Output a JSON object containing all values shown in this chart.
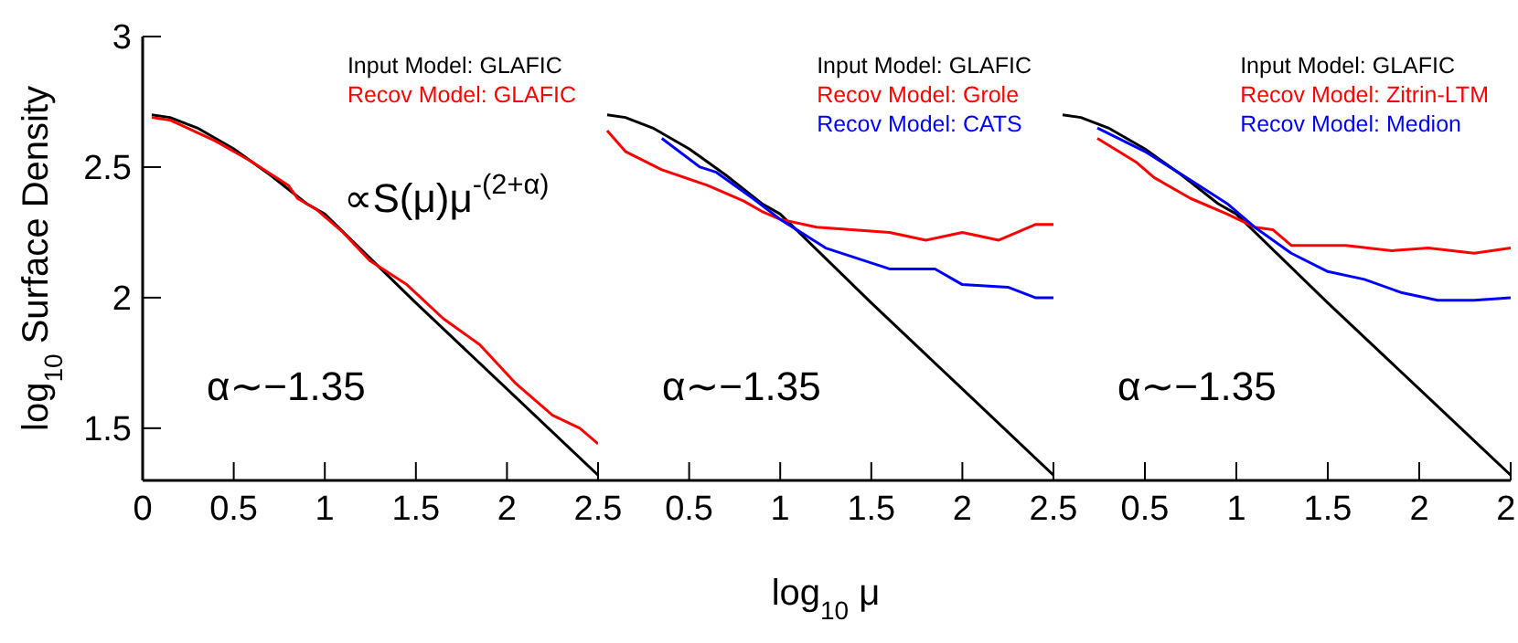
{
  "chart_data": [
    {
      "type": "line",
      "ylabel": "log$_{10}$ Surface Density",
      "xlim": [
        0,
        2.5
      ],
      "xticks": [
        0,
        0.5,
        1,
        1.5,
        2,
        2.5
      ],
      "ylim": [
        1.3,
        3
      ],
      "yticks": [
        1.5,
        2,
        2.5,
        3
      ],
      "legend": "top right",
      "grid": false,
      "marker": "none",
      "series": [
        {
          "name": "Input Model: GLAFIC",
          "color": "#000000",
          "x": [
            0.05,
            0.15,
            0.3,
            0.5,
            0.7,
            0.9,
            1.0,
            1.5,
            2.0,
            2.5
          ],
          "values": [
            2.7,
            2.69,
            2.65,
            2.57,
            2.47,
            2.36,
            2.32,
            1.98,
            1.65,
            1.32
          ]
        },
        {
          "name": "Recov Model: GLAFIC",
          "color": "#ff0000",
          "x": [
            0.05,
            0.15,
            0.4,
            0.6,
            0.8,
            0.85,
            0.95,
            1.1,
            1.25,
            1.45,
            1.65,
            1.85,
            2.05,
            2.25,
            2.4,
            2.5
          ],
          "values": [
            2.69,
            2.68,
            2.6,
            2.52,
            2.43,
            2.38,
            2.34,
            2.25,
            2.14,
            2.05,
            1.92,
            1.82,
            1.67,
            1.55,
            1.5,
            1.44
          ]
        }
      ],
      "annotations": [
        "∝S(μ)μ$^{-(2+α)}$",
        "α∼−1.35"
      ]
    },
    {
      "type": "line",
      "xlabel": "log$_{10}$ μ",
      "xlim": [
        0,
        2.5
      ],
      "xticks": [
        0.5,
        1,
        1.5,
        2,
        2.5
      ],
      "ylim": [
        1.3,
        3
      ],
      "yticks": [
        1.5,
        2,
        2.5,
        3
      ],
      "tick_labels": "x",
      "legend": "top right",
      "grid": false,
      "marker": "none",
      "series": [
        {
          "name": "Input Model: GLAFIC",
          "color": "#000000",
          "x": [
            0.05,
            0.15,
            0.3,
            0.5,
            0.7,
            0.9,
            1.0,
            1.5,
            2.0,
            2.5
          ],
          "values": [
            2.7,
            2.69,
            2.65,
            2.57,
            2.47,
            2.36,
            2.32,
            1.98,
            1.65,
            1.32
          ]
        },
        {
          "name": "Recov Model: Grole",
          "color": "#ff0000",
          "x": [
            0.05,
            0.15,
            0.35,
            0.6,
            0.8,
            0.9,
            1.0,
            1.2,
            1.6,
            1.8,
            2.0,
            2.2,
            2.4,
            2.5
          ],
          "values": [
            2.64,
            2.56,
            2.49,
            2.43,
            2.37,
            2.33,
            2.3,
            2.27,
            2.25,
            2.22,
            2.25,
            2.22,
            2.28,
            2.28
          ]
        },
        {
          "name": "Recov Model: CATS",
          "color": "#0000ff",
          "x": [
            0.35,
            0.56,
            0.65,
            0.85,
            1.0,
            1.25,
            1.6,
            1.85,
            2.0,
            2.25,
            2.4,
            2.5
          ],
          "values": [
            2.61,
            2.5,
            2.48,
            2.38,
            2.3,
            2.19,
            2.11,
            2.11,
            2.05,
            2.04,
            2.0,
            2.0
          ]
        }
      ],
      "annotations": [
        "α∼−1.35"
      ]
    },
    {
      "type": "line",
      "xlim": [
        0,
        2.5
      ],
      "xticks": [
        0.5,
        1,
        1.5,
        2,
        {
          "value": 2.5,
          "label": "2."
        }
      ],
      "ylim": [
        1.3,
        3
      ],
      "yticks": [
        1.5,
        2,
        2.5,
        3
      ],
      "tick_labels": "x",
      "legend": "top right",
      "grid": false,
      "marker": "none",
      "series": [
        {
          "name": "Input Model: GLAFIC",
          "color": "#000000",
          "x": [
            0.05,
            0.15,
            0.3,
            0.5,
            0.7,
            0.9,
            1.0,
            1.5,
            2.0,
            2.5
          ],
          "values": [
            2.7,
            2.69,
            2.65,
            2.57,
            2.47,
            2.36,
            2.32,
            1.98,
            1.65,
            1.32
          ]
        },
        {
          "name": "Recov Model: Zitrin-LTM",
          "color": "#ff0000",
          "x": [
            0.24,
            0.45,
            0.55,
            0.75,
            0.95,
            1.1,
            1.2,
            1.3,
            1.6,
            1.85,
            2.05,
            2.3,
            2.5
          ],
          "values": [
            2.61,
            2.52,
            2.46,
            2.38,
            2.32,
            2.27,
            2.26,
            2.2,
            2.2,
            2.18,
            2.19,
            2.17,
            2.19
          ]
        },
        {
          "name": "Recov Model: Medion",
          "color": "#0000ff",
          "x": [
            0.24,
            0.5,
            0.75,
            0.95,
            1.1,
            1.3,
            1.5,
            1.7,
            1.9,
            2.1,
            2.3,
            2.5
          ],
          "values": [
            2.65,
            2.56,
            2.45,
            2.36,
            2.27,
            2.17,
            2.1,
            2.07,
            2.02,
            1.99,
            1.99,
            2.0
          ]
        }
      ],
      "annotations": [
        "α∼−1.35"
      ]
    }
  ]
}
